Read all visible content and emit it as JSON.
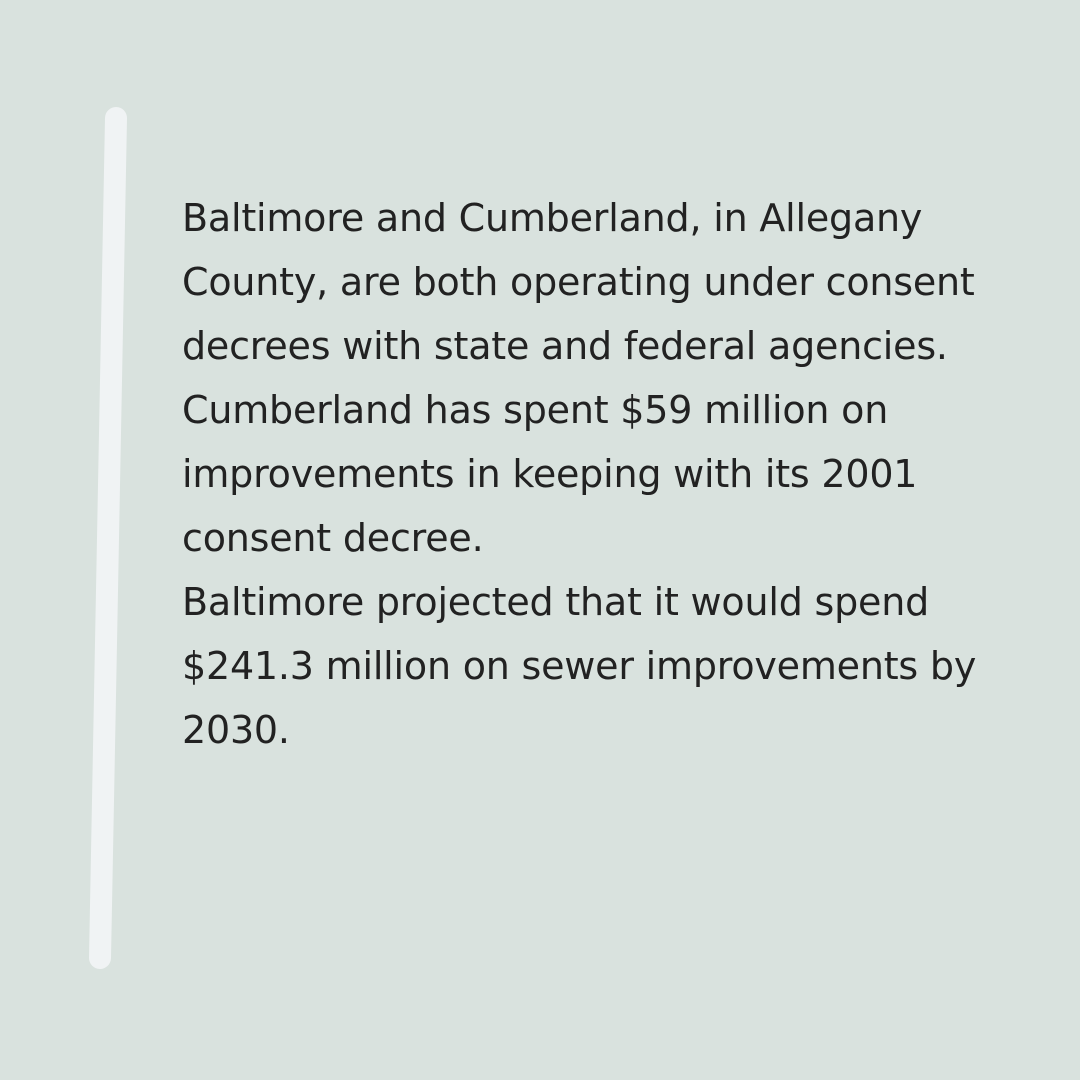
{
  "paragraphs": [
    "Baltimore and Cumberland, in Allegany County, are both operating under consent decrees with state and federal agencies.",
    "Cumberland has spent $59 million on improvements in keeping with its 2001 consent decree.",
    "Baltimore projected that it would spend $241.3 million on sewer improvements by 2030."
  ],
  "colors": {
    "background": "#d9e2de",
    "accent_bar": "#f0f3f4",
    "text": "#222222"
  }
}
